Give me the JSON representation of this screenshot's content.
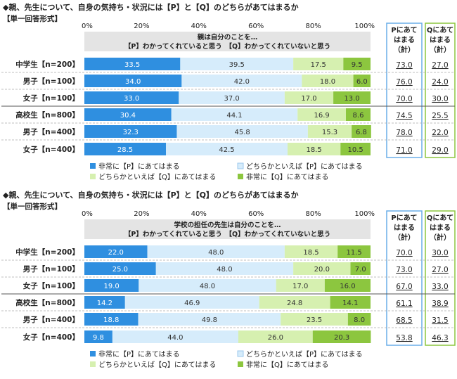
{
  "categories": [
    "中学生【n=200】",
    "男子【n=100】",
    "女子【n=100】",
    "高校生【n=800】",
    "男子【n=400】",
    "女子【n=400】"
  ],
  "axis_ticks": [
    "0%",
    "20%",
    "40%",
    "60%",
    "80%",
    "100%"
  ],
  "series_names": [
    "非常に【P】にあてはまる",
    "どちらかといえば【P】にあてはまる",
    "どちらかといえば【Q】にあてはまる",
    "非常に【Q】にあてはまる"
  ],
  "colors": {
    "series": [
      "#2f8fe0",
      "#d6ecfb",
      "#d6f0b0",
      "#8cc63f"
    ],
    "label_text": [
      "#ffffff",
      "#333333",
      "#333333",
      "#333333"
    ],
    "p_box": "#6aaee8",
    "q_box": "#8cc63f",
    "header_bg": "#e4e4e4"
  },
  "p_header": [
    "Pにあて",
    "はまる",
    "（計）"
  ],
  "q_header": [
    "Qにあて",
    "はまる",
    "（計）"
  ],
  "chart_data": [
    {
      "type": "bar",
      "title": "◆親、先生について、自身の気持ち・状況には【P】と【Q】のどちらがあてはまるか",
      "subtitle": "【単一回答形式】",
      "header": [
        "親は自分のことを…",
        "【P】わかってくれていると思う　【Q】わかってくれていないと思う"
      ],
      "categories": [
        "中学生【n=200】",
        "男子【n=100】",
        "女子【n=100】",
        "高校生【n=800】",
        "男子【n=400】",
        "女子【n=400】"
      ],
      "xlim": [
        0,
        100
      ],
      "series": [
        {
          "name": "非常に【P】にあてはまる",
          "values": [
            33.5,
            34.0,
            33.0,
            30.4,
            32.3,
            28.5
          ]
        },
        {
          "name": "どちらかといえば【P】にあてはまる",
          "values": [
            39.5,
            42.0,
            37.0,
            44.1,
            45.8,
            42.5
          ]
        },
        {
          "name": "どちらかといえば【Q】にあてはまる",
          "values": [
            17.5,
            18.0,
            17.0,
            16.9,
            15.3,
            18.5
          ]
        },
        {
          "name": "非常に【Q】にあてはまる",
          "values": [
            9.5,
            6.0,
            13.0,
            8.6,
            6.8,
            10.5
          ]
        }
      ],
      "p_total": [
        "73.0",
        "76.0",
        "70.0",
        "74.5",
        "78.0",
        "71.0"
      ],
      "q_total": [
        "27.0",
        "24.0",
        "30.0",
        "25.5",
        "22.0",
        "29.0"
      ]
    },
    {
      "type": "bar",
      "title": "◆親、先生について、自身の気持ち・状況には【P】と【Q】のどちらがあてはまるか",
      "subtitle": "【単一回答形式】",
      "header": [
        "学校の担任の先生は自分のことを…",
        "【P】わかってくれていると思う　【Q】わかってくれていないと思う"
      ],
      "categories": [
        "中学生【n=200】",
        "男子【n=100】",
        "女子【n=100】",
        "高校生【n=800】",
        "男子【n=400】",
        "女子【n=400】"
      ],
      "xlim": [
        0,
        100
      ],
      "series": [
        {
          "name": "非常に【P】にあてはまる",
          "values": [
            22.0,
            25.0,
            19.0,
            14.2,
            18.8,
            9.8
          ]
        },
        {
          "name": "どちらかといえば【P】にあてはまる",
          "values": [
            48.0,
            48.0,
            48.0,
            46.9,
            49.8,
            44.0
          ]
        },
        {
          "name": "どちらかといえば【Q】にあてはまる",
          "values": [
            18.5,
            20.0,
            17.0,
            24.8,
            23.5,
            26.0
          ]
        },
        {
          "name": "非常に【Q】にあてはまる",
          "values": [
            11.5,
            7.0,
            16.0,
            14.1,
            8.0,
            20.3
          ]
        }
      ],
      "p_total": [
        "70.0",
        "73.0",
        "67.0",
        "61.1",
        "68.5",
        "53.8"
      ],
      "q_total": [
        "30.0",
        "27.0",
        "33.0",
        "38.9",
        "31.5",
        "46.3"
      ]
    }
  ]
}
